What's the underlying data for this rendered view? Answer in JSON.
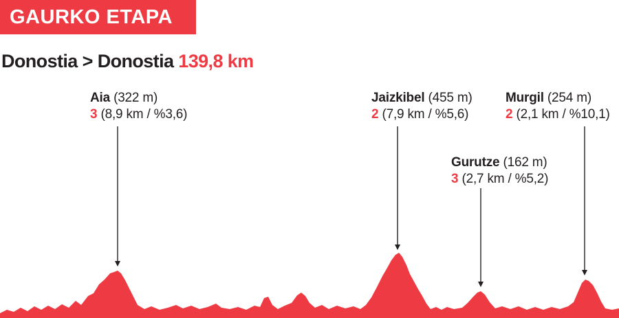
{
  "banner": {
    "text": "GAURKO ETAPA"
  },
  "route": {
    "from": "Donostia",
    "separator": ">",
    "to": "Donostia",
    "distance": "139,8 km"
  },
  "colors": {
    "accent": "#ee3a43",
    "text": "#231f20",
    "arrow": "#231f20"
  },
  "chart_data": {
    "type": "area",
    "title": "Donostia > Donostia 139,8 km",
    "xlabel": "",
    "ylabel": "",
    "climbs": [
      {
        "name": "Aia",
        "elevation": "(322 m)",
        "category": "3",
        "details": "(8,9 km / %3,6)"
      },
      {
        "name": "Jaizkibel",
        "elevation": "(455 m)",
        "category": "2",
        "details": "(7,9 km / %5,6)"
      },
      {
        "name": "Gurutze",
        "elevation": "(162 m)",
        "category": "3",
        "details": "(2,7 km / %5,2)"
      },
      {
        "name": "Murgil",
        "elevation": "(254 m)",
        "category": "2",
        "details": "(2,1 km / %10,1)"
      }
    ]
  }
}
